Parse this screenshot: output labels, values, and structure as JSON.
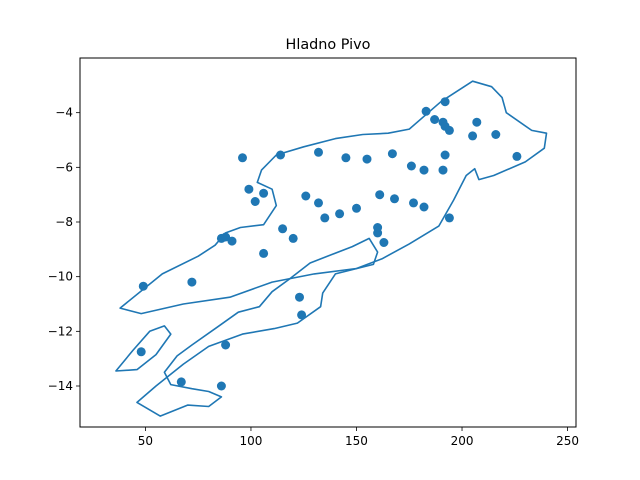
{
  "chart_data": {
    "type": "scatter",
    "title": "Hladno Pivo",
    "xlabel": "",
    "ylabel": "",
    "xlim": [
      19,
      254
    ],
    "ylim": [
      -15.5,
      -2.0
    ],
    "xticks": [
      50,
      100,
      150,
      200,
      250
    ],
    "yticks": [
      -4,
      -6,
      -8,
      -10,
      -12,
      -14
    ],
    "grid": false,
    "point_color": "#1f77b4",
    "contour_color": "#1f77b4",
    "points": [
      [
        49,
        -10.35
      ],
      [
        48,
        -12.75
      ],
      [
        67,
        -13.85
      ],
      [
        86,
        -14.0
      ],
      [
        72,
        -10.2
      ],
      [
        88,
        -12.5
      ],
      [
        86,
        -8.6
      ],
      [
        88,
        -8.55
      ],
      [
        91,
        -8.7
      ],
      [
        106,
        -9.15
      ],
      [
        96,
        -5.65
      ],
      [
        99,
        -6.8
      ],
      [
        102,
        -7.25
      ],
      [
        106,
        -6.95
      ],
      [
        114,
        -5.55
      ],
      [
        115,
        -8.25
      ],
      [
        120,
        -8.6
      ],
      [
        123,
        -10.75
      ],
      [
        124,
        -11.4
      ],
      [
        126,
        -7.05
      ],
      [
        132,
        -5.45
      ],
      [
        132,
        -7.3
      ],
      [
        135,
        -7.85
      ],
      [
        142,
        -7.7
      ],
      [
        145,
        -5.65
      ],
      [
        150,
        -7.5
      ],
      [
        155,
        -5.7
      ],
      [
        160,
        -8.4
      ],
      [
        160,
        -8.2
      ],
      [
        161,
        -7.0
      ],
      [
        163,
        -8.75
      ],
      [
        167,
        -5.5
      ],
      [
        168,
        -7.15
      ],
      [
        176,
        -5.95
      ],
      [
        177,
        -7.3
      ],
      [
        182,
        -6.1
      ],
      [
        182,
        -7.45
      ],
      [
        183,
        -3.95
      ],
      [
        187,
        -4.25
      ],
      [
        191,
        -6.1
      ],
      [
        192,
        -3.6
      ],
      [
        191,
        -4.35
      ],
      [
        192,
        -4.5
      ],
      [
        192,
        -5.55
      ],
      [
        194,
        -4.65
      ],
      [
        194,
        -7.85
      ],
      [
        205,
        -4.85
      ],
      [
        207,
        -4.35
      ],
      [
        216,
        -4.8
      ],
      [
        226,
        -5.6
      ]
    ],
    "contours": [
      [
        [
          38,
          -11.15
        ],
        [
          58,
          -9.9
        ],
        [
          75,
          -9.25
        ],
        [
          83,
          -8.85
        ],
        [
          88,
          -8.4
        ],
        [
          95,
          -8.2
        ],
        [
          106,
          -8.1
        ],
        [
          112,
          -7.4
        ],
        [
          110,
          -6.8
        ],
        [
          103,
          -6.55
        ],
        [
          105,
          -6.1
        ],
        [
          112,
          -5.55
        ],
        [
          125,
          -5.25
        ],
        [
          140,
          -4.95
        ],
        [
          153,
          -4.8
        ],
        [
          165,
          -4.75
        ],
        [
          175,
          -4.6
        ],
        [
          190,
          -3.6
        ],
        [
          205,
          -2.85
        ],
        [
          214,
          -3.05
        ],
        [
          219,
          -3.45
        ],
        [
          221,
          -4.0
        ],
        [
          233,
          -4.65
        ],
        [
          240,
          -4.75
        ],
        [
          239,
          -5.3
        ],
        [
          230,
          -5.8
        ],
        [
          215,
          -6.3
        ],
        [
          208,
          -6.45
        ],
        [
          206,
          -6.05
        ],
        [
          202,
          -6.3
        ],
        [
          196,
          -7.2
        ],
        [
          189,
          -8.15
        ],
        [
          175,
          -8.8
        ],
        [
          162,
          -9.35
        ],
        [
          150,
          -9.7
        ],
        [
          130,
          -9.9
        ],
        [
          110,
          -10.2
        ],
        [
          90,
          -10.75
        ],
        [
          68,
          -11.0
        ],
        [
          48,
          -11.35
        ],
        [
          38,
          -11.15
        ]
      ],
      [
        [
          36,
          -13.45
        ],
        [
          44,
          -12.7
        ],
        [
          52,
          -12.0
        ],
        [
          59,
          -11.8
        ],
        [
          62,
          -12.1
        ],
        [
          55,
          -12.85
        ],
        [
          46,
          -13.4
        ],
        [
          36,
          -13.45
        ]
      ],
      [
        [
          70,
          -14.7
        ],
        [
          57,
          -15.1
        ],
        [
          46,
          -14.6
        ],
        [
          55,
          -14.0
        ],
        [
          68,
          -13.2
        ],
        [
          80,
          -12.55
        ],
        [
          96,
          -12.1
        ],
        [
          111,
          -11.9
        ],
        [
          122,
          -11.7
        ],
        [
          133,
          -11.1
        ],
        [
          134,
          -10.6
        ],
        [
          140,
          -9.9
        ],
        [
          158,
          -9.55
        ],
        [
          160,
          -9.1
        ],
        [
          156,
          -8.6
        ],
        [
          148,
          -8.9
        ],
        [
          138,
          -9.2
        ],
        [
          128,
          -9.5
        ],
        [
          118,
          -10.1
        ],
        [
          110,
          -10.55
        ],
        [
          104,
          -11.1
        ],
        [
          94,
          -11.3
        ],
        [
          84,
          -11.85
        ],
        [
          72,
          -12.5
        ],
        [
          65,
          -12.9
        ],
        [
          59,
          -13.5
        ],
        [
          62,
          -13.95
        ],
        [
          72,
          -14.1
        ],
        [
          80,
          -14.2
        ],
        [
          86,
          -14.4
        ],
        [
          80,
          -14.75
        ],
        [
          70,
          -14.7
        ]
      ]
    ]
  }
}
